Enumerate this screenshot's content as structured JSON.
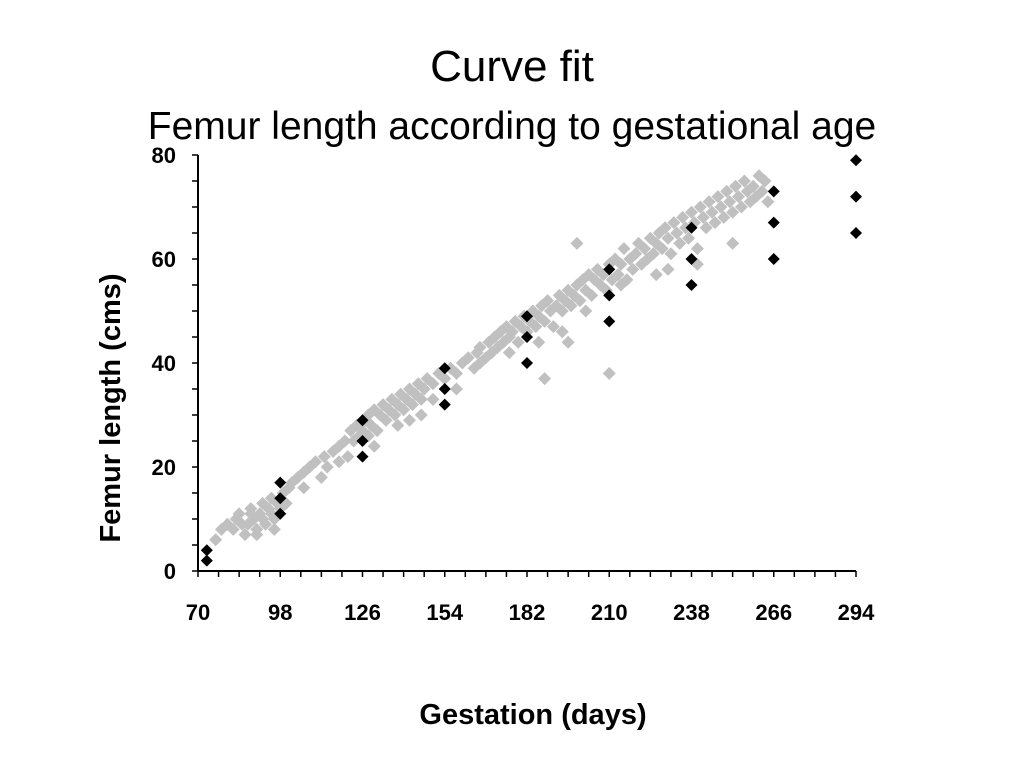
{
  "chart_data": {
    "type": "scatter",
    "title": "Curve fit",
    "subtitle": "Femur length according to gestational age",
    "xlabel": "Gestation (days)",
    "ylabel": "Femur length (cms)",
    "xlim": [
      70,
      294
    ],
    "ylim": [
      0,
      80
    ],
    "xticks": [
      70,
      98,
      126,
      154,
      182,
      210,
      238,
      266,
      294
    ],
    "yticks": [
      0,
      20,
      40,
      60,
      80
    ],
    "grid": false,
    "colors": {
      "observed": "#c0c0c0",
      "reference": "#000000"
    },
    "series": [
      {
        "marker": "diamond",
        "color": "#c0c0c0",
        "points": [
          [
            76,
            6
          ],
          [
            78,
            8
          ],
          [
            80,
            9
          ],
          [
            82,
            8
          ],
          [
            83,
            10
          ],
          [
            84,
            11
          ],
          [
            85,
            9
          ],
          [
            86,
            7
          ],
          [
            87,
            9
          ],
          [
            88,
            11
          ],
          [
            88,
            12
          ],
          [
            89,
            10
          ],
          [
            90,
            8
          ],
          [
            91,
            11
          ],
          [
            92,
            10
          ],
          [
            92,
            13
          ],
          [
            93,
            9
          ],
          [
            94,
            12
          ],
          [
            95,
            11
          ],
          [
            95,
            14
          ],
          [
            96,
            10
          ],
          [
            97,
            13
          ],
          [
            98,
            12
          ],
          [
            99,
            15
          ],
          [
            100,
            13
          ],
          [
            101,
            16
          ],
          [
            102,
            17
          ],
          [
            104,
            18
          ],
          [
            106,
            19
          ],
          [
            108,
            20
          ],
          [
            110,
            21
          ],
          [
            112,
            18
          ],
          [
            113,
            22
          ],
          [
            114,
            20
          ],
          [
            116,
            23
          ],
          [
            118,
            24
          ],
          [
            120,
            25
          ],
          [
            121,
            22
          ],
          [
            122,
            27
          ],
          [
            123,
            25
          ],
          [
            124,
            28
          ],
          [
            125,
            26
          ],
          [
            126,
            27
          ],
          [
            127,
            29
          ],
          [
            128,
            26
          ],
          [
            128,
            30
          ],
          [
            129,
            28
          ],
          [
            130,
            31
          ],
          [
            131,
            27
          ],
          [
            132,
            30
          ],
          [
            133,
            32
          ],
          [
            134,
            29
          ],
          [
            135,
            31
          ],
          [
            136,
            33
          ],
          [
            137,
            30
          ],
          [
            138,
            32
          ],
          [
            139,
            34
          ],
          [
            140,
            31
          ],
          [
            141,
            33
          ],
          [
            142,
            29
          ],
          [
            142,
            35
          ],
          [
            143,
            32
          ],
          [
            144,
            34
          ],
          [
            145,
            36
          ],
          [
            146,
            33
          ],
          [
            147,
            35
          ],
          [
            148,
            37
          ],
          [
            150,
            36
          ],
          [
            152,
            38
          ],
          [
            154,
            37
          ],
          [
            156,
            39
          ],
          [
            158,
            38
          ],
          [
            160,
            40
          ],
          [
            162,
            41
          ],
          [
            164,
            39
          ],
          [
            165,
            42
          ],
          [
            166,
            43
          ],
          [
            168,
            41
          ],
          [
            169,
            44
          ],
          [
            170,
            42
          ],
          [
            171,
            45
          ],
          [
            172,
            43
          ],
          [
            173,
            46
          ],
          [
            174,
            44
          ],
          [
            175,
            47
          ],
          [
            176,
            45
          ],
          [
            177,
            46
          ],
          [
            178,
            48
          ],
          [
            179,
            44
          ],
          [
            180,
            47
          ],
          [
            181,
            49
          ],
          [
            182,
            46
          ],
          [
            183,
            48
          ],
          [
            184,
            50
          ],
          [
            185,
            47
          ],
          [
            186,
            49
          ],
          [
            187,
            51
          ],
          [
            188,
            37
          ],
          [
            188,
            48
          ],
          [
            189,
            52
          ],
          [
            190,
            50
          ],
          [
            191,
            47
          ],
          [
            192,
            51
          ],
          [
            193,
            53
          ],
          [
            194,
            50
          ],
          [
            195,
            52
          ],
          [
            196,
            54
          ],
          [
            197,
            51
          ],
          [
            198,
            53
          ],
          [
            199,
            63
          ],
          [
            199,
            55
          ],
          [
            200,
            52
          ],
          [
            201,
            56
          ],
          [
            202,
            54
          ],
          [
            203,
            57
          ],
          [
            204,
            53
          ],
          [
            205,
            56
          ],
          [
            206,
            58
          ],
          [
            207,
            55
          ],
          [
            208,
            57
          ],
          [
            209,
            54
          ],
          [
            210,
            59
          ],
          [
            210,
            38
          ],
          [
            211,
            56
          ],
          [
            212,
            60
          ],
          [
            213,
            57
          ],
          [
            214,
            59
          ],
          [
            215,
            62
          ],
          [
            216,
            56
          ],
          [
            217,
            60
          ],
          [
            218,
            58
          ],
          [
            219,
            61
          ],
          [
            220,
            63
          ],
          [
            221,
            59
          ],
          [
            222,
            62
          ],
          [
            223,
            60
          ],
          [
            224,
            64
          ],
          [
            225,
            61
          ],
          [
            226,
            63
          ],
          [
            227,
            65
          ],
          [
            228,
            62
          ],
          [
            229,
            66
          ],
          [
            230,
            64
          ],
          [
            231,
            61
          ],
          [
            232,
            67
          ],
          [
            233,
            65
          ],
          [
            234,
            63
          ],
          [
            235,
            68
          ],
          [
            236,
            66
          ],
          [
            237,
            64
          ],
          [
            238,
            69
          ],
          [
            239,
            67
          ],
          [
            240,
            62
          ],
          [
            241,
            70
          ],
          [
            242,
            68
          ],
          [
            243,
            66
          ],
          [
            244,
            71
          ],
          [
            245,
            69
          ],
          [
            246,
            67
          ],
          [
            247,
            72
          ],
          [
            248,
            70
          ],
          [
            249,
            68
          ],
          [
            250,
            73
          ],
          [
            251,
            71
          ],
          [
            252,
            69
          ],
          [
            253,
            74
          ],
          [
            254,
            72
          ],
          [
            255,
            70
          ],
          [
            256,
            75
          ],
          [
            257,
            73
          ],
          [
            258,
            71
          ],
          [
            259,
            74
          ],
          [
            260,
            72
          ],
          [
            261,
            76
          ],
          [
            262,
            73
          ],
          [
            263,
            75
          ],
          [
            264,
            71
          ],
          [
            252,
            63
          ],
          [
            240,
            59
          ],
          [
            226,
            57
          ],
          [
            214,
            55
          ],
          [
            202,
            50
          ],
          [
            194,
            46
          ],
          [
            186,
            44
          ],
          [
            176,
            42
          ],
          [
            166,
            40
          ],
          [
            158,
            35
          ],
          [
            150,
            33
          ],
          [
            138,
            28
          ],
          [
            130,
            24
          ],
          [
            118,
            21
          ],
          [
            106,
            16
          ],
          [
            96,
            8
          ],
          [
            90,
            7
          ],
          [
            146,
            30
          ],
          [
            196,
            44
          ],
          [
            230,
            58
          ]
        ]
      },
      {
        "marker": "diamond",
        "color": "#000000",
        "points": [
          [
            73,
            4
          ],
          [
            73,
            2
          ],
          [
            98,
            17
          ],
          [
            98,
            14
          ],
          [
            98,
            11
          ],
          [
            126,
            29
          ],
          [
            126,
            25
          ],
          [
            126,
            22
          ],
          [
            154,
            39
          ],
          [
            154,
            35
          ],
          [
            154,
            32
          ],
          [
            182,
            49
          ],
          [
            182,
            45
          ],
          [
            182,
            40
          ],
          [
            210,
            58
          ],
          [
            210,
            53
          ],
          [
            210,
            48
          ],
          [
            238,
            66
          ],
          [
            238,
            60
          ],
          [
            238,
            55
          ],
          [
            266,
            73
          ],
          [
            266,
            67
          ],
          [
            266,
            60
          ],
          [
            294,
            79
          ],
          [
            294,
            72
          ],
          [
            294,
            65
          ]
        ]
      }
    ]
  }
}
